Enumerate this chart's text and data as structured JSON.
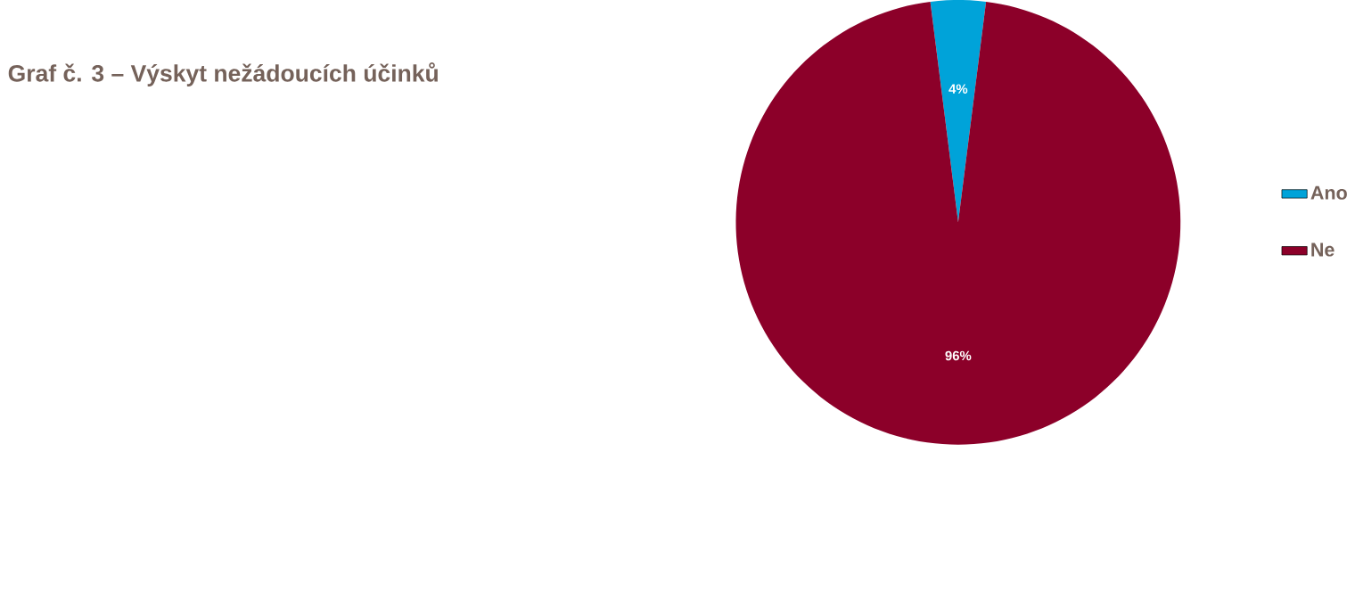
{
  "chart_data": {
    "type": "pie",
    "title": "Graf č. 3 – Výskyt nežádoucích účinků",
    "categories": [
      "Ano",
      "Ne"
    ],
    "values": [
      4,
      96
    ],
    "colors": [
      "#00a3d9",
      "#8c0029"
    ],
    "value_labels": [
      "4%",
      "96%"
    ],
    "legend": "right"
  }
}
